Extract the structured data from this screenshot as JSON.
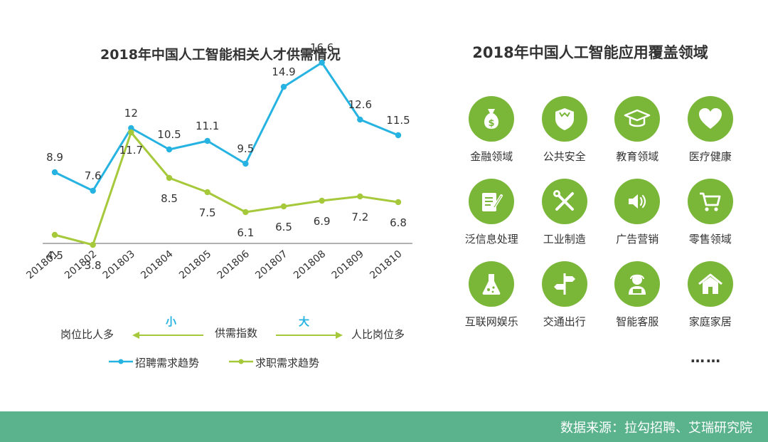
{
  "chart_data": {
    "type": "line",
    "title": "2018年中国人工智能相关人才供需情况",
    "categories": [
      "201801",
      "201802",
      "201803",
      "201804",
      "201805",
      "201806",
      "201807",
      "201808",
      "201809",
      "201810"
    ],
    "series": [
      {
        "name": "招聘需求趋势",
        "color": "#26b3e2",
        "values": [
          8.9,
          7.6,
          12,
          10.5,
          11.1,
          9.5,
          14.9,
          16.6,
          12.6,
          11.5
        ]
      },
      {
        "name": "求职需求趋势",
        "color": "#a6c93b",
        "values": [
          4.5,
          3.8,
          11.7,
          8.5,
          7.5,
          6.1,
          6.5,
          6.9,
          7.2,
          6.8
        ]
      }
    ],
    "data_labels": {
      "demand": [
        "8.9",
        "7.6",
        "12",
        "10.5",
        "11.1",
        "9.5",
        "14.9",
        "16.6",
        "12.6",
        "11.5"
      ],
      "supply": [
        "4.5",
        "3.8",
        "11.7",
        "8.5",
        "7.5",
        "6.1",
        "6.5",
        "6.9",
        "7.2",
        "6.8"
      ]
    },
    "ylim": [
      2,
      18
    ],
    "grid": false,
    "legend_position": "bottom"
  },
  "supply_demand_scale": {
    "left_label": "岗位比人多",
    "center_label": "供需指数",
    "right_label": "人比岗位多",
    "small_mark": "小",
    "large_mark": "大"
  },
  "right_panel": {
    "title": "2018年中国人工智能应用覆盖领域",
    "accent_color": "#7ab739",
    "domains": [
      {
        "label": "金融领域",
        "icon": "money-bag-icon"
      },
      {
        "label": "公共安全",
        "icon": "shield-icon"
      },
      {
        "label": "教育领域",
        "icon": "graduation-cap-icon"
      },
      {
        "label": "医疗健康",
        "icon": "heart-icon"
      },
      {
        "label": "泛信息处理",
        "icon": "document-pen-icon"
      },
      {
        "label": "工业制造",
        "icon": "tools-icon"
      },
      {
        "label": "广告营销",
        "icon": "speaker-icon"
      },
      {
        "label": "零售领域",
        "icon": "shopping-cart-icon"
      },
      {
        "label": "互联网娱乐",
        "icon": "flask-icon"
      },
      {
        "label": "交通出行",
        "icon": "signpost-icon"
      },
      {
        "label": "智能客服",
        "icon": "agent-icon"
      },
      {
        "label": "家庭家居",
        "icon": "home-icon"
      }
    ],
    "more": "……"
  },
  "footer": {
    "source": "数据来源：拉勾招聘、艾瑞研究院",
    "color": "#5bb38d"
  }
}
